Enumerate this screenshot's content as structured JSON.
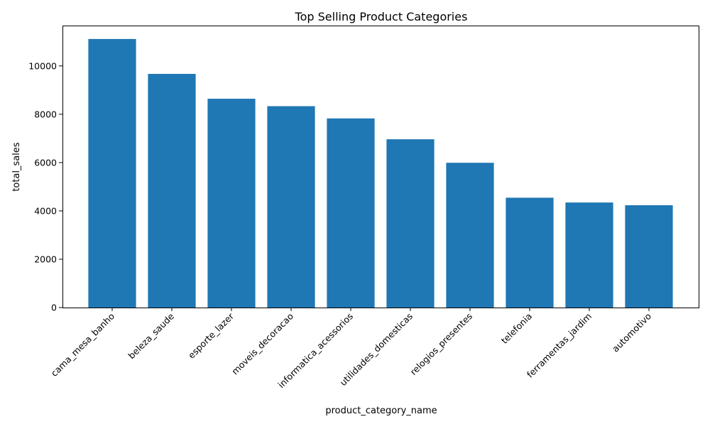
{
  "chart_data": {
    "type": "bar",
    "title": "Top Selling Product Categories",
    "xlabel": "product_category_name",
    "ylabel": "total_sales",
    "categories": [
      "cama_mesa_banho",
      "beleza_saude",
      "esporte_lazer",
      "moveis_decoracao",
      "informatica_acessorios",
      "utilidades_domesticas",
      "relogios_presentes",
      "telefonia",
      "ferramentas_jardim",
      "automotivo"
    ],
    "values": [
      11115,
      9670,
      8641,
      8334,
      7827,
      6964,
      5991,
      4545,
      4347,
      4235
    ],
    "ylim": [
      0,
      11670
    ],
    "yticks": [
      0,
      2000,
      4000,
      6000,
      8000,
      10000
    ],
    "grid": false,
    "bar_color": "#1f77b4",
    "xtick_rotation": 45
  }
}
